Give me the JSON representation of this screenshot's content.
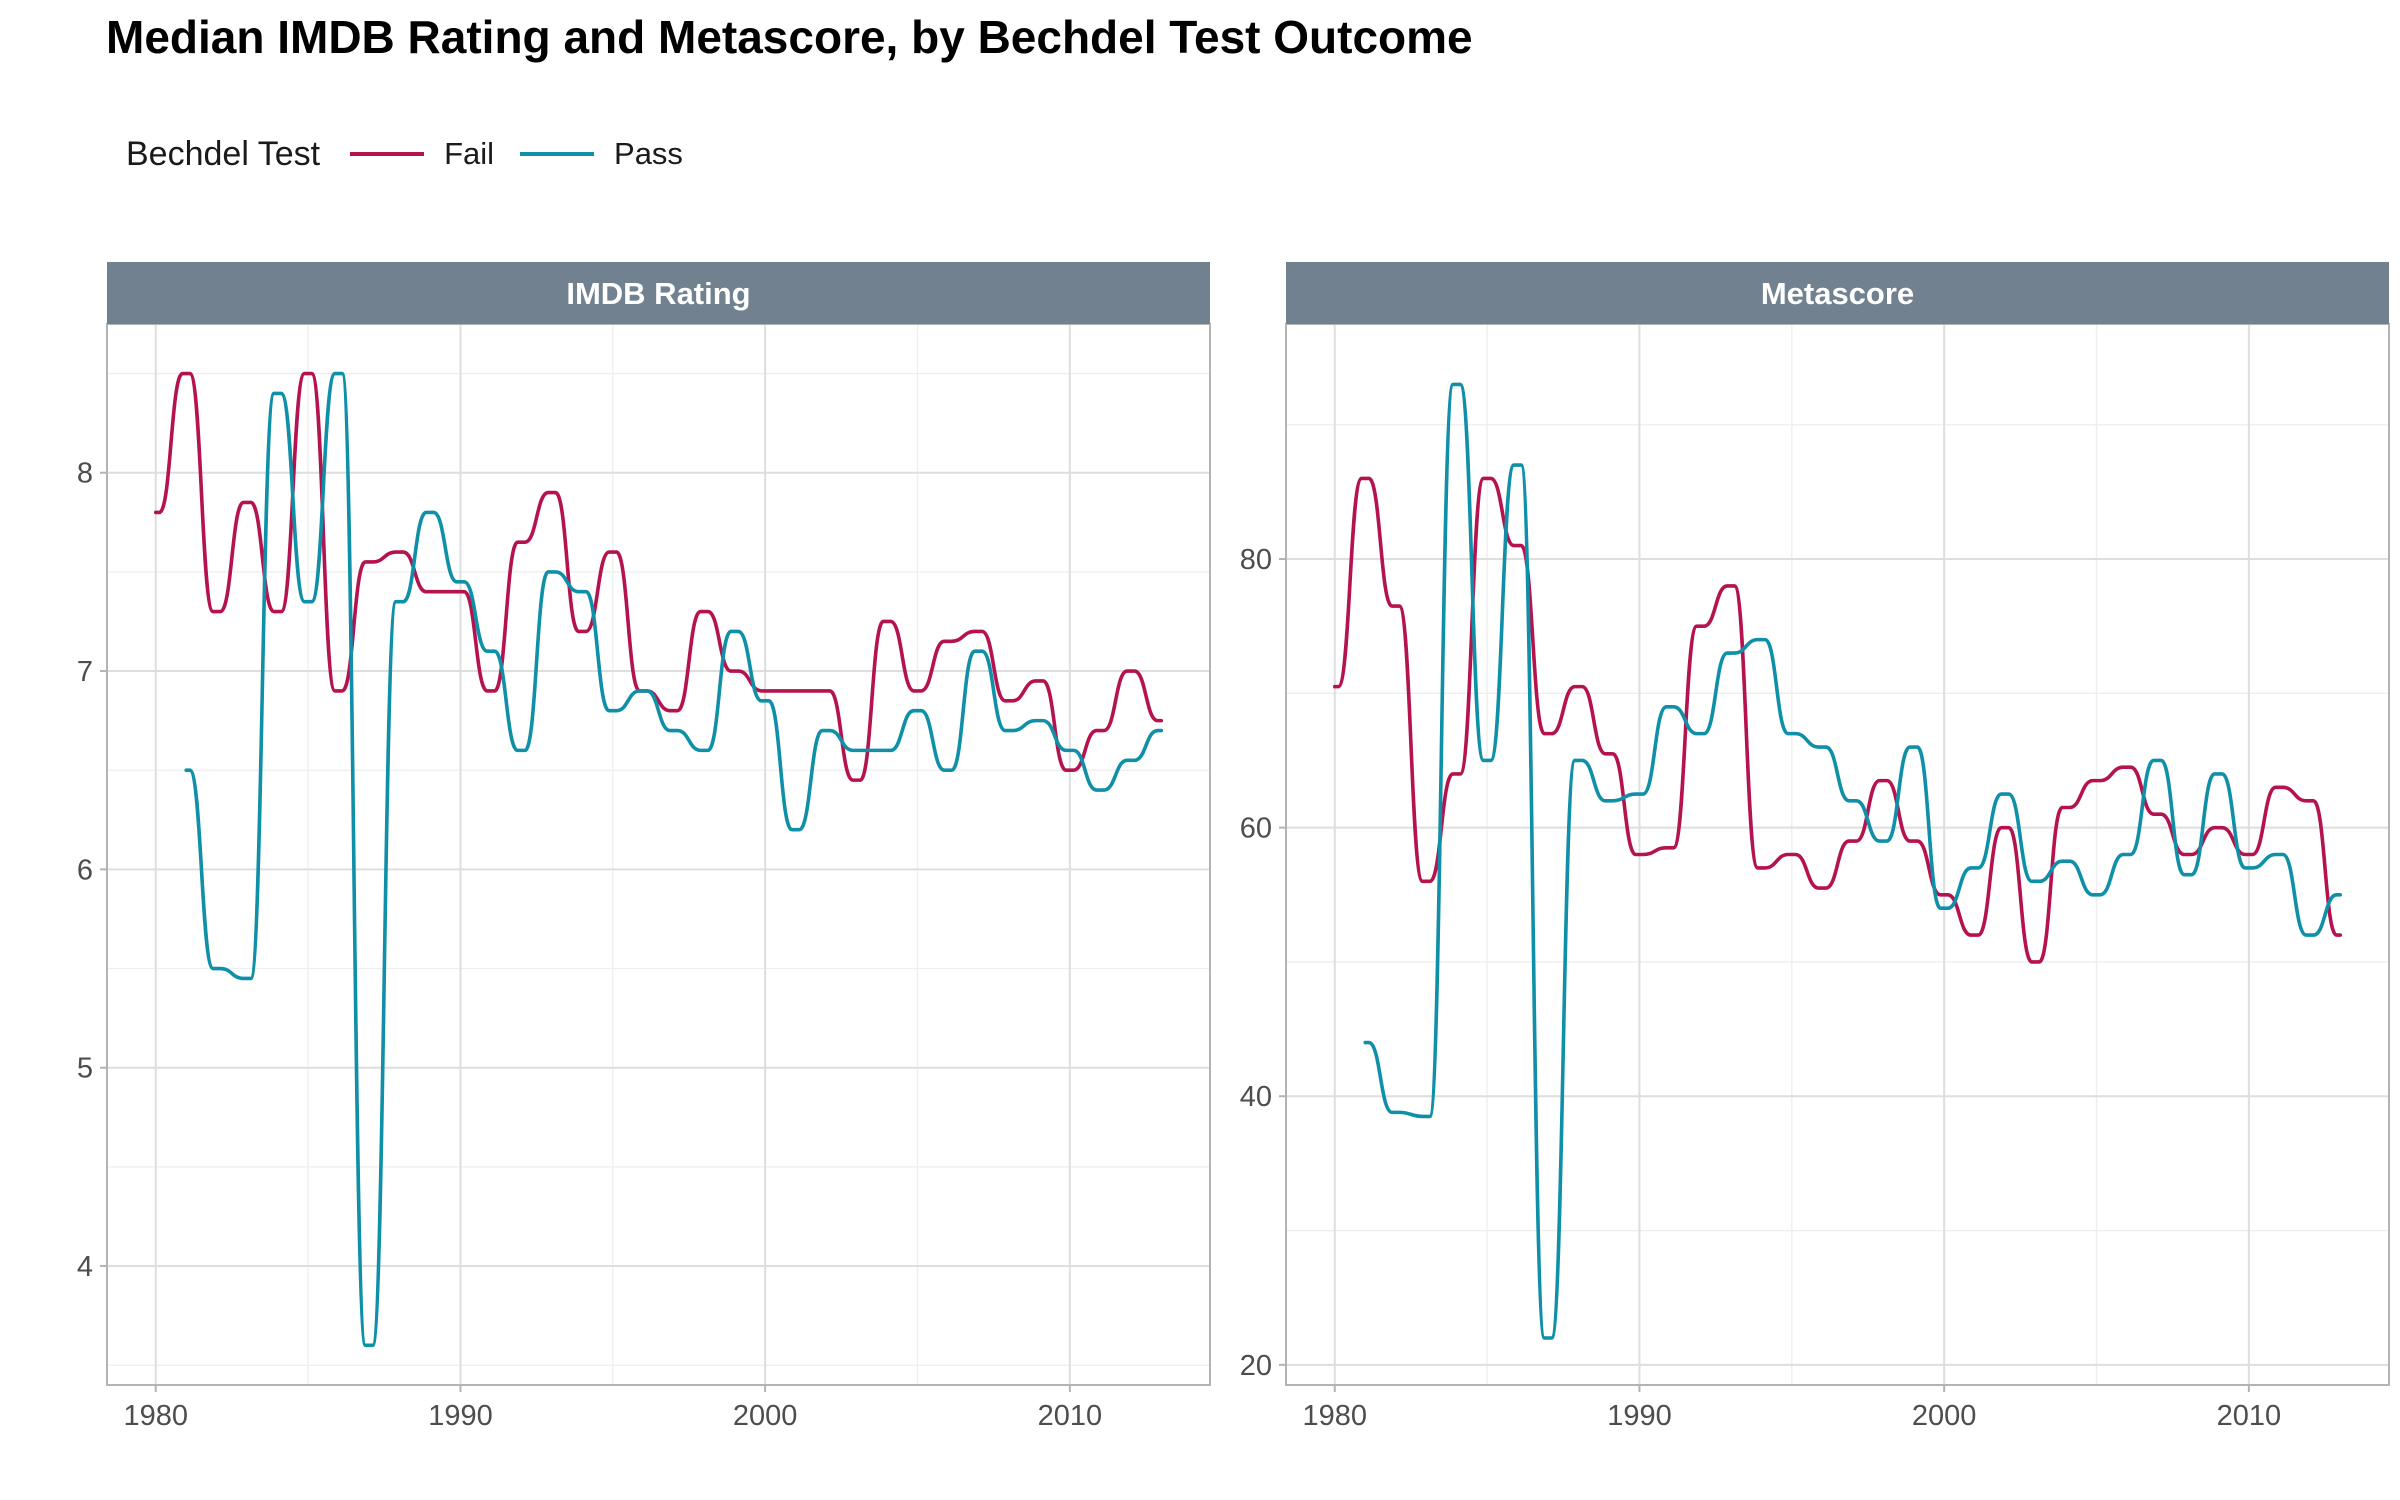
{
  "title": "Median IMDB Rating and Metascore, by Bechdel Test Outcome",
  "legend": {
    "title": "Bechdel Test",
    "items": [
      {
        "label": "Fail",
        "color": "#B5134F"
      },
      {
        "label": "Pass",
        "color": "#0F90A8"
      }
    ]
  },
  "chart_data": [
    {
      "type": "line",
      "facet_label": "IMDB Rating",
      "xlim": [
        1978.4,
        2014.6
      ],
      "ylim": [
        3.4,
        8.75
      ],
      "x_ticks": [
        1980,
        1990,
        2000,
        2010
      ],
      "y_ticks": [
        4,
        5,
        6,
        7,
        8
      ],
      "grid": true,
      "series": [
        {
          "name": "Fail",
          "x": [
            1980,
            1981,
            1982,
            1983,
            1984,
            1985,
            1986,
            1987,
            1988,
            1989,
            1990,
            1991,
            1992,
            1993,
            1994,
            1995,
            1996,
            1997,
            1998,
            1999,
            2000,
            2001,
            2002,
            2003,
            2004,
            2005,
            2006,
            2007,
            2008,
            2009,
            2010,
            2011,
            2012,
            2013
          ],
          "y": [
            7.8,
            8.5,
            7.3,
            7.85,
            7.3,
            8.5,
            6.9,
            7.55,
            7.6,
            7.4,
            7.4,
            6.9,
            7.65,
            7.9,
            7.2,
            7.6,
            6.9,
            6.8,
            7.3,
            7.0,
            6.9,
            6.9,
            6.9,
            6.45,
            7.25,
            6.9,
            7.15,
            7.2,
            6.85,
            6.95,
            6.5,
            6.7,
            7.0,
            6.75
          ]
        },
        {
          "name": "Pass",
          "x": [
            1981,
            1982,
            1983,
            1984,
            1985,
            1986,
            1987,
            1988,
            1989,
            1990,
            1991,
            1992,
            1993,
            1994,
            1995,
            1996,
            1997,
            1998,
            1999,
            2000,
            2001,
            2002,
            2003,
            2004,
            2005,
            2006,
            2007,
            2008,
            2009,
            2010,
            2011,
            2012,
            2013
          ],
          "y": [
            6.5,
            5.5,
            5.45,
            8.4,
            7.35,
            8.5,
            3.6,
            7.35,
            7.8,
            7.45,
            7.1,
            6.6,
            7.5,
            7.4,
            6.8,
            6.9,
            6.7,
            6.6,
            7.2,
            6.85,
            6.2,
            6.7,
            6.6,
            6.6,
            6.8,
            6.5,
            7.1,
            6.7,
            6.75,
            6.6,
            6.4,
            6.55,
            6.7
          ]
        }
      ]
    },
    {
      "type": "line",
      "facet_label": "Metascore",
      "xlim": [
        1978.4,
        2014.6
      ],
      "ylim": [
        18.5,
        97.5
      ],
      "x_ticks": [
        1980,
        1990,
        2000,
        2010
      ],
      "y_ticks": [
        20,
        40,
        60,
        80
      ],
      "grid": true,
      "series": [
        {
          "name": "Fail",
          "x": [
            1980,
            1981,
            1982,
            1983,
            1984,
            1985,
            1986,
            1987,
            1988,
            1989,
            1990,
            1991,
            1992,
            1993,
            1994,
            1995,
            1996,
            1997,
            1998,
            1999,
            2000,
            2001,
            2002,
            2003,
            2004,
            2005,
            2006,
            2007,
            2008,
            2009,
            2010,
            2011,
            2012,
            2013
          ],
          "y": [
            70.5,
            86,
            76.5,
            56,
            64,
            86,
            81,
            67,
            70.5,
            65.5,
            58,
            58.5,
            75,
            78,
            57,
            58,
            55.5,
            59,
            63.5,
            59,
            55,
            52,
            60,
            50,
            61.5,
            63.5,
            64.5,
            61,
            58,
            60,
            58,
            63,
            62,
            52
          ]
        },
        {
          "name": "Pass",
          "x": [
            1981,
            1982,
            1983,
            1984,
            1985,
            1986,
            1987,
            1988,
            1989,
            1990,
            1991,
            1992,
            1993,
            1994,
            1995,
            1996,
            1997,
            1998,
            1999,
            2000,
            2001,
            2002,
            2003,
            2004,
            2005,
            2006,
            2007,
            2008,
            2009,
            2010,
            2011,
            2012,
            2013
          ],
          "y": [
            44,
            38.8,
            38.5,
            93,
            65,
            87,
            22,
            65,
            62,
            62.5,
            69,
            67,
            73,
            74,
            67,
            66,
            62,
            59,
            66,
            54,
            57,
            62.5,
            56,
            57.5,
            55,
            58,
            65,
            56.5,
            64,
            57,
            58,
            52,
            55
          ]
        }
      ]
    }
  ]
}
